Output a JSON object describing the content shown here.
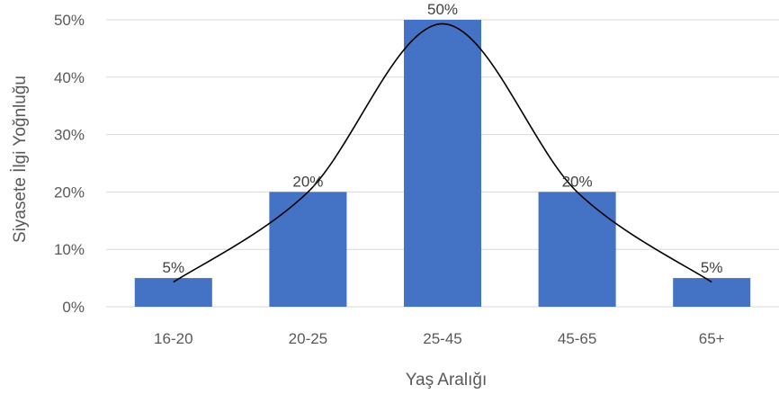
{
  "chart_data": {
    "type": "bar",
    "title": "",
    "xlabel": "Yaş Aralığı",
    "ylabel": "Siyasete İlgi Yoğnluğu",
    "categories": [
      "16-20",
      "20-25",
      "25-45",
      "45-65",
      "65+"
    ],
    "values": [
      5,
      20,
      50,
      20,
      5
    ],
    "value_labels": [
      "5%",
      "20%",
      "50%",
      "20%",
      "5%"
    ],
    "ylim": [
      0,
      50
    ],
    "y_ticks": [
      "0%",
      "10%",
      "20%",
      "30%",
      "40%",
      "50%"
    ],
    "y_tick_values": [
      0,
      10,
      20,
      30,
      40,
      50
    ],
    "grid": true,
    "legend": "none",
    "overlay": "smoothed bell curve",
    "colors": {
      "bar": "#4472C4",
      "grid": "#D9D9D9",
      "curve": "#000000",
      "text": "#595959"
    }
  }
}
